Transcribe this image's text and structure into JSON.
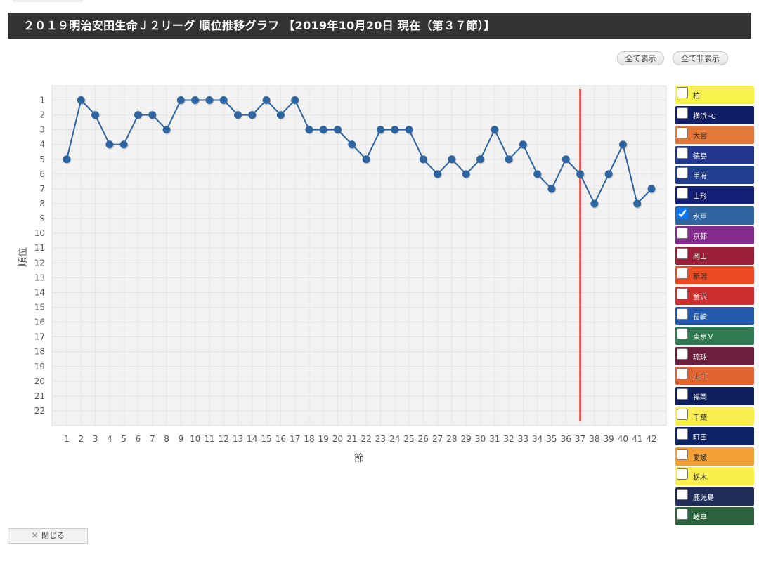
{
  "header": {
    "title": "２０１９明治安田生命Ｊ２リーグ 順位推移グラフ 【2019年10月20日 現在（第３７節）】"
  },
  "controls": {
    "show_all": "全て表示",
    "hide_all": "全て非表示"
  },
  "footer": {
    "close_label": "閉じる",
    "close_icon": "×"
  },
  "colors": {
    "series": "#2e64a0",
    "current_marker": "#e8312a",
    "current_tick": "#e8312a"
  },
  "chart_data": {
    "type": "line",
    "xlabel": "節",
    "ylabel": "順位",
    "x": [
      1,
      2,
      3,
      4,
      5,
      6,
      7,
      8,
      9,
      10,
      11,
      12,
      13,
      14,
      15,
      16,
      17,
      18,
      19,
      20,
      21,
      22,
      23,
      24,
      25,
      26,
      27,
      28,
      29,
      30,
      31,
      32,
      33,
      34,
      35,
      36,
      37,
      38,
      39,
      40,
      41,
      42
    ],
    "y_ticks": [
      1,
      2,
      3,
      4,
      5,
      6,
      7,
      8,
      9,
      10,
      11,
      12,
      13,
      14,
      15,
      16,
      17,
      18,
      19,
      20,
      21,
      22
    ],
    "ylim": [
      1,
      22
    ],
    "y_inverted": true,
    "grid": true,
    "legend": "right",
    "current_round": 37,
    "series": [
      {
        "name": "水戸",
        "values": [
          5,
          1,
          2,
          4,
          4,
          2,
          2,
          3,
          1,
          1,
          1,
          1,
          2,
          2,
          1,
          2,
          1,
          3,
          3,
          3,
          4,
          5,
          3,
          3,
          3,
          5,
          6,
          5,
          6,
          5,
          3,
          5,
          4,
          6,
          7,
          5,
          6,
          8,
          6,
          4,
          8,
          7
        ]
      }
    ]
  },
  "teams": [
    {
      "name": "柏",
      "color": "#f9f24d",
      "text": "#222222",
      "checked": false
    },
    {
      "name": "横浜FC",
      "color": "#101e68",
      "text": "#ffffff",
      "checked": false
    },
    {
      "name": "大宮",
      "color": "#e4773a",
      "text": "#222222",
      "checked": false
    },
    {
      "name": "徳島",
      "color": "#24378e",
      "text": "#ffffff",
      "checked": false
    },
    {
      "name": "甲府",
      "color": "#1f3e8f",
      "text": "#ffffff",
      "checked": false
    },
    {
      "name": "山形",
      "color": "#142076",
      "text": "#ffffff",
      "checked": false
    },
    {
      "name": "水戸",
      "color": "#2e64a0",
      "text": "#ffffff",
      "checked": true
    },
    {
      "name": "京都",
      "color": "#822b8c",
      "text": "#ffffff",
      "checked": false
    },
    {
      "name": "岡山",
      "color": "#9c1f37",
      "text": "#ffffff",
      "checked": false
    },
    {
      "name": "新潟",
      "color": "#ec4c22",
      "text": "#222222",
      "checked": false
    },
    {
      "name": "金沢",
      "color": "#cc2e30",
      "text": "#ffffff",
      "checked": false
    },
    {
      "name": "長崎",
      "color": "#2458ad",
      "text": "#ffffff",
      "checked": false
    },
    {
      "name": "東京Ｖ",
      "color": "#2f7a50",
      "text": "#ffffff",
      "checked": false
    },
    {
      "name": "琉球",
      "color": "#6b1f3c",
      "text": "#ffffff",
      "checked": false
    },
    {
      "name": "山口",
      "color": "#e06431",
      "text": "#222222",
      "checked": false
    },
    {
      "name": "福岡",
      "color": "#0e1f5e",
      "text": "#ffffff",
      "checked": false
    },
    {
      "name": "千葉",
      "color": "#f9ed4f",
      "text": "#222222",
      "checked": false
    },
    {
      "name": "町田",
      "color": "#0e2266",
      "text": "#ffffff",
      "checked": false
    },
    {
      "name": "愛媛",
      "color": "#f3a035",
      "text": "#222222",
      "checked": false
    },
    {
      "name": "栃木",
      "color": "#f9ef4d",
      "text": "#222222",
      "checked": false
    },
    {
      "name": "鹿児島",
      "color": "#1f2d58",
      "text": "#ffffff",
      "checked": false
    },
    {
      "name": "岐阜",
      "color": "#2c623e",
      "text": "#ffffff",
      "checked": false
    }
  ]
}
